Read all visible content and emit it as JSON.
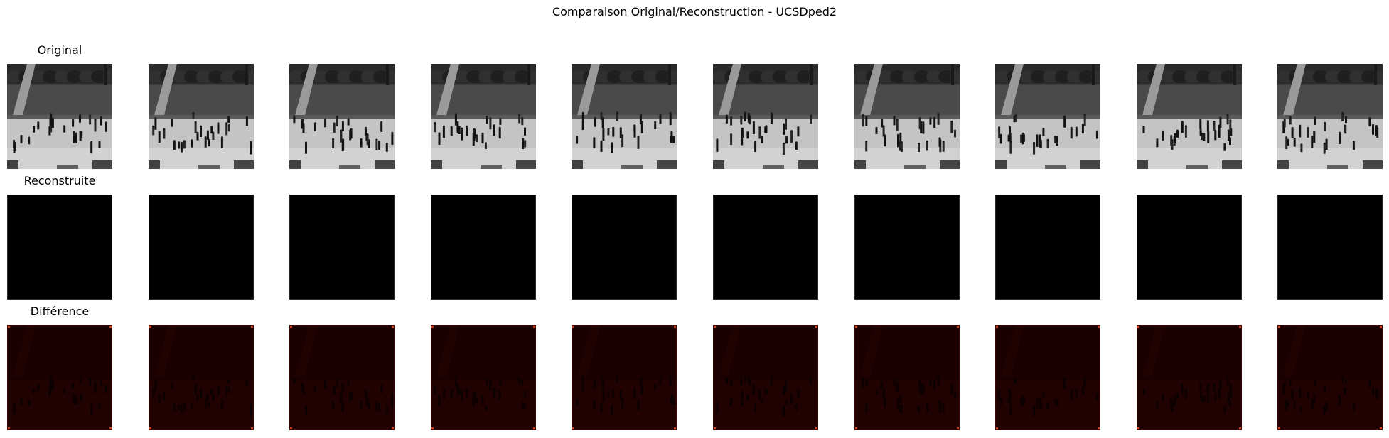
{
  "figure": {
    "suptitle": "Comparaison Original/Reconstruction - UCSDped2",
    "rows": [
      {
        "title": "Original",
        "kind": "original"
      },
      {
        "title": "Reconstruite",
        "kind": "reconstruction"
      },
      {
        "title": "Différence",
        "kind": "difference"
      }
    ],
    "frame_count": 10,
    "colors": {
      "background": "#ffffff",
      "reconstruction": "#000000",
      "difference": "#1a0000",
      "difference_edge": "#d0401a"
    }
  }
}
